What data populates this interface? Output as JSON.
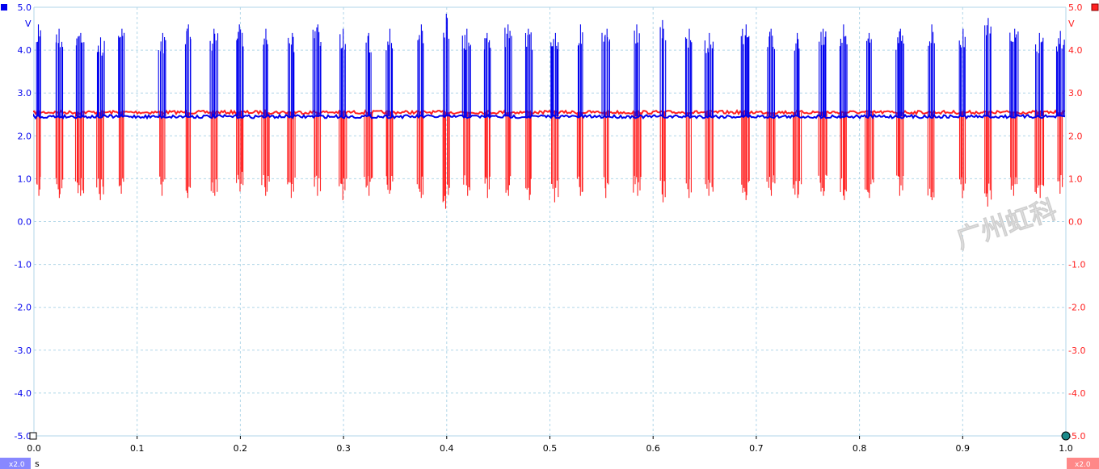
{
  "chart_data": {
    "type": "line",
    "title": "",
    "xlabel": "",
    "x_unit": "s",
    "xlim": [
      0.0,
      1.0
    ],
    "x_ticks": [
      "0.0",
      "0.1",
      "0.2",
      "0.3",
      "0.4",
      "0.5",
      "0.6",
      "0.7",
      "0.8",
      "0.9",
      "1.0"
    ],
    "y_unit": "V",
    "ylim": [
      -5.0,
      5.0
    ],
    "y_ticks": [
      "5.0",
      "4.0",
      "3.0",
      "2.0",
      "1.0",
      "0.0",
      "-1.0",
      "-2.0",
      "-3.0",
      "-4.0",
      "-5.0"
    ],
    "left_axis_ticks": [
      "5.0",
      "4.0",
      "3.0",
      "2.0",
      "1.0",
      "0.0",
      "-1.0",
      "-2.0",
      "-3.0",
      "-4.0",
      "-5.0"
    ],
    "right_axis_ticks": [
      "5.0",
      "4.0",
      "3.0",
      "2.0",
      "1.0",
      "0.0",
      "-1.0",
      "-2.0",
      "-3.0",
      "-4.0",
      "-5.0"
    ],
    "grid": true,
    "legend": "none",
    "series": [
      {
        "color": "#0000ee",
        "baseline": 2.45,
        "direction": "up",
        "burst_x": [
          0.005,
          0.025,
          0.045,
          0.065,
          0.085,
          0.125,
          0.15,
          0.175,
          0.2,
          0.225,
          0.25,
          0.275,
          0.3,
          0.325,
          0.345,
          0.375,
          0.4,
          0.42,
          0.44,
          0.46,
          0.48,
          0.505,
          0.53,
          0.555,
          0.585,
          0.61,
          0.635,
          0.655,
          0.69,
          0.715,
          0.74,
          0.765,
          0.785,
          0.81,
          0.84,
          0.87,
          0.9,
          0.925,
          0.95,
          0.975,
          0.995
        ],
        "peaks": [
          4.6,
          4.5,
          4.4,
          4.3,
          4.5,
          4.4,
          4.6,
          4.5,
          4.6,
          4.5,
          4.4,
          4.6,
          4.5,
          4.4,
          4.5,
          4.6,
          4.85,
          4.5,
          4.4,
          4.6,
          4.5,
          4.4,
          4.6,
          4.5,
          4.6,
          4.7,
          4.5,
          4.4,
          4.6,
          4.5,
          4.4,
          4.5,
          4.6,
          4.4,
          4.5,
          4.6,
          4.5,
          4.75,
          4.5,
          4.4,
          4.45
        ]
      },
      {
        "color": "#ff2020",
        "baseline": 2.55,
        "direction": "down",
        "burst_x": [
          0.005,
          0.025,
          0.045,
          0.065,
          0.085,
          0.125,
          0.15,
          0.175,
          0.2,
          0.225,
          0.25,
          0.275,
          0.3,
          0.325,
          0.345,
          0.375,
          0.4,
          0.42,
          0.44,
          0.46,
          0.48,
          0.505,
          0.53,
          0.555,
          0.585,
          0.61,
          0.635,
          0.655,
          0.69,
          0.715,
          0.74,
          0.765,
          0.785,
          0.81,
          0.84,
          0.87,
          0.9,
          0.925,
          0.95,
          0.975,
          0.995
        ],
        "troughs": [
          0.6,
          0.55,
          0.6,
          0.5,
          0.65,
          0.6,
          0.55,
          0.6,
          0.7,
          0.6,
          0.55,
          0.6,
          0.5,
          0.6,
          0.65,
          0.55,
          0.3,
          0.6,
          0.55,
          0.6,
          0.5,
          0.45,
          0.6,
          0.55,
          0.6,
          0.45,
          0.55,
          0.6,
          0.5,
          0.6,
          0.55,
          0.6,
          0.5,
          0.55,
          0.6,
          0.5,
          0.55,
          0.35,
          0.6,
          0.55,
          0.65
        ]
      }
    ]
  },
  "channel_a": {
    "unit": "V",
    "scale_badge": "x2.0",
    "color": "#0000ee"
  },
  "channel_b": {
    "unit": "V",
    "scale_badge": "x2.0",
    "color": "#ff2020"
  },
  "x_unit_label": "s",
  "watermark": "广州虹科",
  "colors": {
    "grid": "#b0d6e8",
    "badge_a_bg": "#8888ff",
    "badge_b_bg": "#ff8888",
    "marker_ruler": "#1a8a8a"
  }
}
